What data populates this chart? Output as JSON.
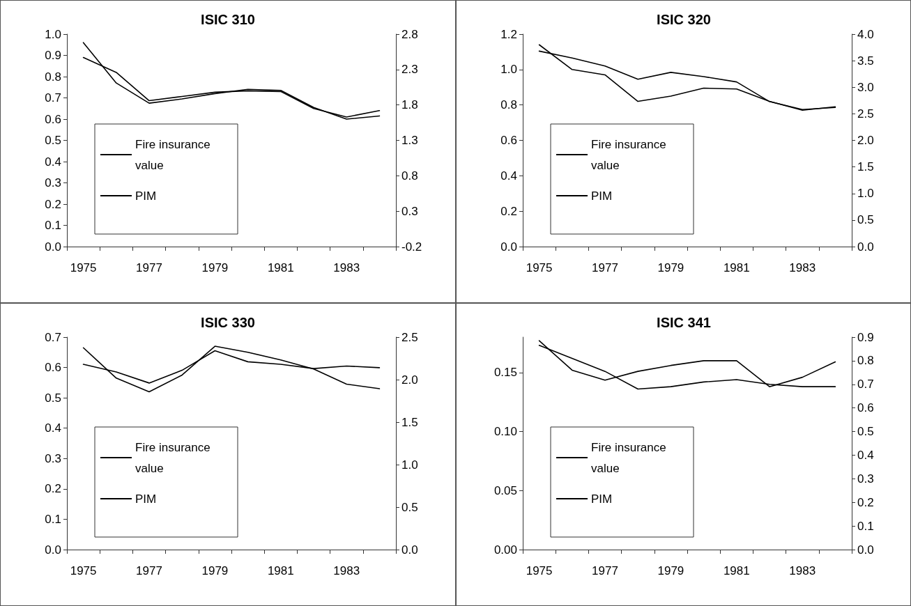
{
  "chart_data": [
    {
      "type": "line",
      "title": "ISIC 310",
      "categories": [
        "1975",
        null,
        "1977",
        null,
        "1979",
        null,
        "1981",
        null,
        "1983",
        null
      ],
      "legend": "bottom left",
      "grid": false,
      "marker": "none",
      "ylim": [
        0,
        1.0
      ],
      "yticks": [
        {
          "value": 0,
          "label": "0.0"
        },
        0.1,
        0.2,
        0.3,
        0.4,
        0.5,
        0.6,
        0.7,
        0.8,
        0.9,
        {
          "value": 1.0,
          "label": "1.0"
        }
      ],
      "y2lim": [
        -0.2,
        2.8
      ],
      "y2ticks": [
        -0.2,
        0.3,
        0.8,
        1.3,
        1.8,
        2.3,
        2.8
      ],
      "series": [
        {
          "name": "Fire insurance value",
          "color": "#000000",
          "values": [
            0.96,
            0.77,
            0.675,
            0.695,
            0.72,
            0.74,
            0.735,
            0.655,
            0.6,
            0.615
          ]
        },
        {
          "name": "PIM",
          "color": "#000000",
          "axis": "y2",
          "values": [
            2.47,
            2.26,
            1.86,
            1.92,
            1.98,
            2.0,
            1.99,
            1.75,
            1.63,
            1.72
          ]
        }
      ]
    },
    {
      "type": "line",
      "title": "ISIC 320",
      "categories": [
        "1975",
        null,
        "1977",
        null,
        "1979",
        null,
        "1981",
        null,
        "1983",
        null
      ],
      "legend": "bottom left",
      "grid": false,
      "marker": "none",
      "ylim": [
        0,
        1.2
      ],
      "yticks": [
        {
          "value": 0,
          "label": "0.0"
        },
        0.2,
        0.4,
        0.6,
        0.8,
        {
          "value": 1.0,
          "label": "1.0"
        },
        1.2
      ],
      "y2lim": [
        0,
        4.0
      ],
      "y2ticks": [
        {
          "value": 0,
          "label": "0.0"
        },
        0.5,
        {
          "value": 1.0,
          "label": "1.0"
        },
        1.5,
        {
          "value": 2.0,
          "label": "2.0"
        },
        2.5,
        {
          "value": 3.0,
          "label": "3.0"
        },
        3.5,
        {
          "value": 4.0,
          "label": "4.0"
        }
      ],
      "series": [
        {
          "name": "Fire insurance value",
          "color": "#000000",
          "values": [
            1.14,
            1.0,
            0.97,
            0.82,
            0.85,
            0.895,
            0.89,
            0.82,
            0.77,
            0.79
          ]
        },
        {
          "name": "PIM",
          "color": "#000000",
          "axis": "y2",
          "values": [
            3.68,
            3.55,
            3.4,
            3.15,
            3.28,
            3.2,
            3.1,
            2.73,
            2.58,
            2.62
          ]
        }
      ]
    },
    {
      "type": "line",
      "title": "ISIC 330",
      "categories": [
        "1975",
        null,
        "1977",
        null,
        "1979",
        null,
        "1981",
        null,
        "1983",
        null
      ],
      "legend": "bottom left",
      "grid": false,
      "marker": "none",
      "ylim": [
        0,
        0.7
      ],
      "yticks": [
        {
          "value": 0,
          "label": "0.0"
        },
        0.1,
        0.2,
        0.3,
        0.4,
        0.5,
        0.6,
        0.7
      ],
      "y2lim": [
        0,
        2.5
      ],
      "y2ticks": [
        {
          "value": 0,
          "label": "0.0"
        },
        0.5,
        {
          "value": 1.0,
          "label": "1.0"
        },
        1.5,
        {
          "value": 2.0,
          "label": "2.0"
        },
        2.5
      ],
      "series": [
        {
          "name": "Fire insurance value",
          "color": "#000000",
          "values": [
            0.665,
            0.565,
            0.52,
            0.575,
            0.67,
            0.65,
            0.625,
            0.595,
            0.545,
            0.53
          ]
        },
        {
          "name": "PIM",
          "color": "#000000",
          "axis": "y2",
          "values": [
            2.18,
            2.09,
            1.96,
            2.11,
            2.34,
            2.21,
            2.18,
            2.13,
            2.16,
            2.14
          ]
        }
      ]
    },
    {
      "type": "line",
      "title": "ISIC 341",
      "categories": [
        "1975",
        null,
        "1977",
        null,
        "1979",
        null,
        "1981",
        null,
        "1983",
        null
      ],
      "legend": "bottom left",
      "grid": false,
      "marker": "none",
      "ylim": [
        0,
        0.18
      ],
      "yticks": [
        {
          "value": 0,
          "label": "0.00"
        },
        0.05,
        {
          "value": 0.1,
          "label": "0.10"
        },
        0.15
      ],
      "y2lim": [
        0,
        0.9
      ],
      "y2ticks": [
        {
          "value": 0,
          "label": "0.0"
        },
        0.1,
        0.2,
        0.3,
        0.4,
        0.5,
        0.6,
        0.7,
        0.8,
        0.9
      ],
      "series": [
        {
          "name": "Fire insurance value",
          "color": "#000000",
          "values": [
            0.177,
            0.152,
            0.1435,
            0.151,
            0.156,
            0.16,
            0.16,
            0.138,
            0.146,
            0.159
          ]
        },
        {
          "name": "PIM",
          "color": "#000000",
          "axis": "y2",
          "values": [
            0.865,
            0.81,
            0.755,
            0.68,
            0.69,
            0.71,
            0.72,
            0.7,
            0.69,
            0.69
          ]
        }
      ]
    }
  ]
}
